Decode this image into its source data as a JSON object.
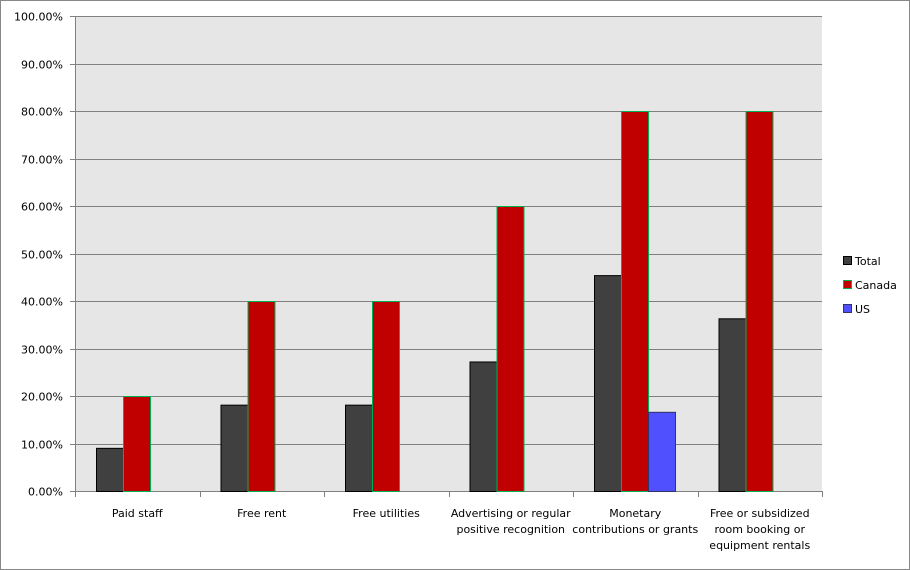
{
  "chart_data": {
    "type": "bar",
    "categories": [
      "Paid staff",
      "Free rent",
      "Free utilities",
      "Advertising or regular positive recognition",
      "Monetary contributions or grants",
      "Free or subsidized room booking or equipment rentals"
    ],
    "category_lines": [
      [
        "Paid staff"
      ],
      [
        "Free rent"
      ],
      [
        "Free utilities"
      ],
      [
        "Advertising or regular",
        "positive recognition"
      ],
      [
        "Monetary",
        "contributions or grants"
      ],
      [
        "Free or subsidized",
        "room booking or",
        "equipment rentals"
      ]
    ],
    "series": [
      {
        "name": "Total",
        "values": [
          9.09,
          18.18,
          18.18,
          27.27,
          45.45,
          36.36
        ],
        "color": "#404040",
        "border": "#000000"
      },
      {
        "name": "Canada",
        "values": [
          20,
          40,
          40,
          60,
          80,
          80
        ],
        "color": "#c00000",
        "border": "#00b050"
      },
      {
        "name": "US",
        "values": [
          0,
          0,
          0,
          0,
          16.67,
          0
        ],
        "color": "#5050ff",
        "border": "#333366"
      }
    ],
    "ylim": [
      0,
      100
    ],
    "yticks": [
      "0.00%",
      "10.00%",
      "20.00%",
      "30.00%",
      "40.00%",
      "50.00%",
      "60.00%",
      "70.00%",
      "80.00%",
      "90.00%",
      "100.00%"
    ],
    "grid": true,
    "legend": "right",
    "plot_background": "#e6e6e6"
  }
}
